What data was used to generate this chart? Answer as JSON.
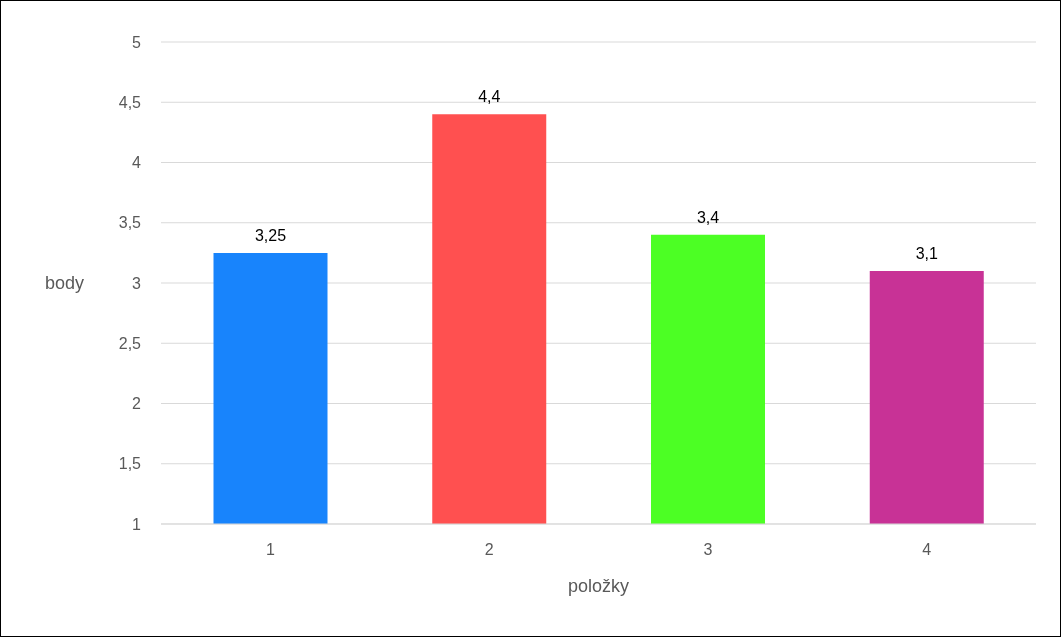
{
  "chart_data": {
    "type": "bar",
    "xlabel": "položky",
    "ylabel": "body",
    "categories": [
      "1",
      "2",
      "3",
      "4"
    ],
    "values": [
      3.25,
      4.4,
      3.4,
      3.1
    ],
    "colors": [
      "#1884fc",
      "#ff5050",
      "#4cff24",
      "#c83296"
    ],
    "value_labels": [
      "3,25",
      "4,4",
      "3,4",
      "3,1"
    ],
    "ylim": [
      1,
      5
    ],
    "yticks": [
      1,
      {
        "value": 1.5,
        "label": "1,5"
      },
      2,
      {
        "value": 2.5,
        "label": "2,5"
      },
      3,
      {
        "value": 3.5,
        "label": "3,5"
      },
      4,
      {
        "value": 4.5,
        "label": "4,5"
      },
      5
    ],
    "grid": "y"
  }
}
